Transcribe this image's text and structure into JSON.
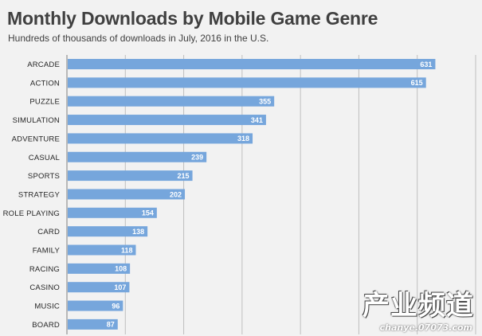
{
  "chart_data": {
    "type": "bar",
    "orientation": "horizontal",
    "title": "Monthly Downloads by Mobile Game Genre",
    "subtitle": "Hundreds of thousands of downloads  in July, 2016 in the U.S.",
    "categories": [
      "ARCADE",
      "ACTION",
      "PUZZLE",
      "SIMULATION",
      "ADVENTURE",
      "CASUAL",
      "SPORTS",
      "STRATEGY",
      "ROLE PLAYING",
      "CARD",
      "FAMILY",
      "RACING",
      "CASINO",
      "MUSIC",
      "BOARD"
    ],
    "values": [
      631,
      615,
      355,
      341,
      318,
      239,
      215,
      202,
      154,
      138,
      118,
      108,
      107,
      96,
      87
    ],
    "xlim": [
      0,
      700
    ],
    "grid": true,
    "colors": {
      "bar": "#76a6dc",
      "background": "#f2f2f2"
    }
  },
  "watermark": {
    "text": "产业频道",
    "url": "chanye.07073.com"
  }
}
